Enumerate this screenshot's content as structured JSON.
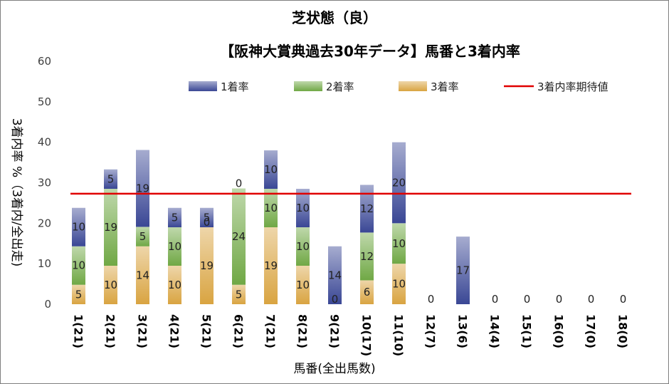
{
  "chart_data": {
    "type": "bar",
    "title": "芝状態（良）",
    "subtitle": "【阪神大賞典過去30年データ】馬番と3着内率",
    "xlabel": "馬番(全出馬数)",
    "ylabel": "3着内率 %（3着内/全出走)",
    "ylim": [
      0,
      60
    ],
    "yticks": [
      0,
      10,
      20,
      30,
      40,
      50,
      60
    ],
    "stacked": true,
    "legend_position": "top",
    "categories": [
      "1(21)",
      "2(21)",
      "3(21)",
      "4(21)",
      "5(21)",
      "6(21)",
      "7(21)",
      "8(21)",
      "9(21)",
      "10(17)",
      "11(10)",
      "12(7)",
      "13(6)",
      "14(4)",
      "15(1)",
      "16(0)",
      "17(0)",
      "18(0)"
    ],
    "series": [
      {
        "name": "3着率",
        "color": "#d9a441",
        "values": [
          4.8,
          9.5,
          14.3,
          9.5,
          19.0,
          4.8,
          19.0,
          9.5,
          0,
          5.9,
          10,
          0,
          0,
          0,
          0,
          0,
          0,
          0
        ],
        "labels": [
          "5",
          "10",
          "14",
          "10",
          "19",
          "5",
          "19",
          "10",
          "0",
          "6",
          "10",
          "",
          "",
          "",
          "",
          "",
          "",
          ""
        ]
      },
      {
        "name": "2着率",
        "color": "#70a845",
        "values": [
          9.5,
          19.0,
          4.8,
          9.5,
          0,
          23.8,
          9.5,
          9.5,
          0,
          11.8,
          10,
          0,
          0,
          0,
          0,
          0,
          0,
          0
        ],
        "labels": [
          "10",
          "19",
          "5",
          "10",
          "0",
          "24",
          "10",
          "10",
          "",
          "12",
          "10",
          "",
          "",
          "",
          "",
          "",
          "",
          ""
        ]
      },
      {
        "name": "1着率",
        "color": "#3a4795",
        "values": [
          9.5,
          4.8,
          19.0,
          4.8,
          4.8,
          0,
          9.5,
          9.5,
          14.3,
          11.8,
          20,
          0,
          16.7,
          0,
          0,
          0,
          0,
          0
        ],
        "labels": [
          "10",
          "5",
          "19",
          "5",
          "5",
          "0",
          "10",
          "10",
          "14",
          "12",
          "20",
          "0",
          "17",
          "0",
          "0",
          "0",
          "0",
          "0"
        ]
      }
    ],
    "reference_line": {
      "name": "3着内率期待値",
      "value": 27.3,
      "color": "#e00000"
    }
  }
}
